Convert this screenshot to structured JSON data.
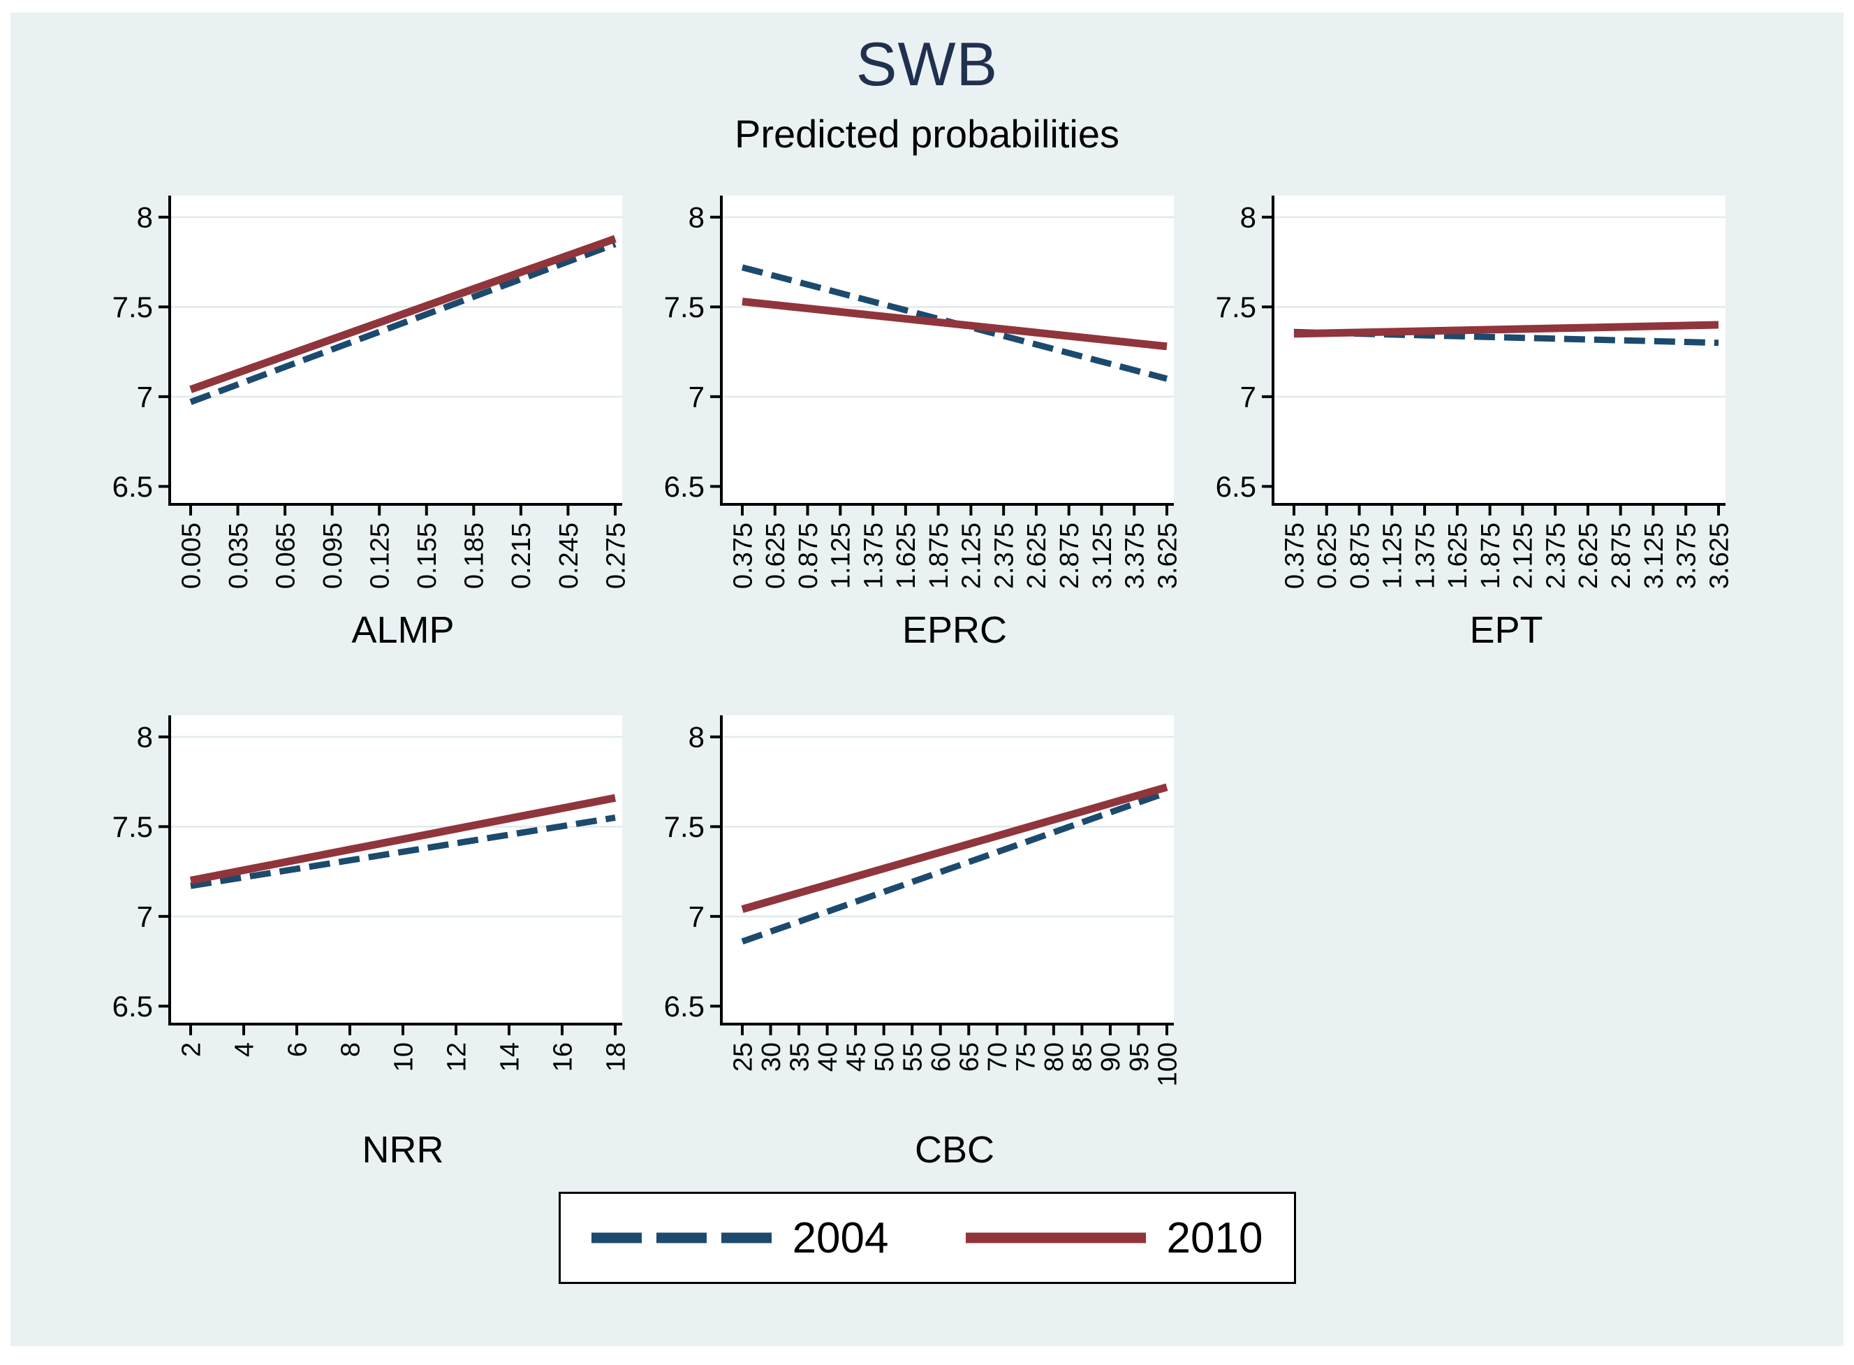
{
  "page": {
    "background": "#ffffff",
    "panel_background": "#eaf1f3"
  },
  "header": {
    "title": "SWB",
    "subtitle": "Predicted probabilities"
  },
  "colors": {
    "title_navy": "#20304f",
    "series_2004_navy": "#1c4a6e",
    "series_2010_maroon": "#90353b",
    "gridline": "#e0eaec",
    "axis": "#000000",
    "plot_background": "#ffffff"
  },
  "legend": {
    "items": [
      {
        "label": "2004",
        "style": "dashed",
        "color": "#1c4a6e"
      },
      {
        "label": "2010",
        "style": "solid",
        "color": "#90353b"
      }
    ]
  },
  "chart_data": [
    {
      "type": "line",
      "xlabel": "ALMP",
      "x_ticks": [
        0.005,
        0.035,
        0.065,
        0.095,
        0.125,
        0.155,
        0.185,
        0.215,
        0.245,
        0.275
      ],
      "x_tick_labels": [
        "0.005",
        "0.035",
        "0.065",
        "0.095",
        "0.125",
        "0.155",
        "0.185",
        "0.215",
        "0.245",
        "0.275"
      ],
      "ylim": [
        6.4,
        8.12
      ],
      "y_ticks": [
        6.5,
        7,
        7.5,
        8
      ],
      "y_tick_labels": [
        "6.5",
        "7",
        "7.5",
        "8"
      ],
      "grid_y": [
        7,
        7.5,
        8
      ],
      "series": [
        {
          "name": "2004",
          "style": "dashed",
          "color": "#1c4a6e",
          "x": [
            0.005,
            0.275
          ],
          "y": [
            6.97,
            7.85
          ]
        },
        {
          "name": "2010",
          "style": "solid",
          "color": "#90353b",
          "x": [
            0.005,
            0.275
          ],
          "y": [
            7.04,
            7.88
          ]
        }
      ]
    },
    {
      "type": "line",
      "xlabel": "EPRC",
      "x_ticks": [
        0.375,
        0.625,
        0.875,
        1.125,
        1.375,
        1.625,
        1.875,
        2.125,
        2.375,
        2.625,
        2.875,
        3.125,
        3.375,
        3.625
      ],
      "x_tick_labels": [
        "0.375",
        "0.625",
        "0.875",
        "1.125",
        "1.375",
        "1.625",
        "1.875",
        "2.125",
        "2.375",
        "2.625",
        "2.875",
        "3.125",
        "3.375",
        "3.625"
      ],
      "ylim": [
        6.4,
        8.12
      ],
      "y_ticks": [
        6.5,
        7,
        7.5,
        8
      ],
      "y_tick_labels": [
        "6.5",
        "7",
        "7.5",
        "8"
      ],
      "grid_y": [
        7,
        7.5,
        8
      ],
      "series": [
        {
          "name": "2004",
          "style": "dashed",
          "color": "#1c4a6e",
          "x": [
            0.375,
            3.625
          ],
          "y": [
            7.72,
            7.1
          ]
        },
        {
          "name": "2010",
          "style": "solid",
          "color": "#90353b",
          "x": [
            0.375,
            3.625
          ],
          "y": [
            7.53,
            7.28
          ]
        }
      ]
    },
    {
      "type": "line",
      "xlabel": "EPT",
      "x_ticks": [
        0.375,
        0.625,
        0.875,
        1.125,
        1.375,
        1.625,
        1.875,
        2.125,
        2.375,
        2.625,
        2.875,
        3.125,
        3.375,
        3.625
      ],
      "x_tick_labels": [
        "0.375",
        "0.625",
        "0.875",
        "1.125",
        "1.375",
        "1.625",
        "1.875",
        "2.125",
        "2.375",
        "2.625",
        "2.875",
        "3.125",
        "3.375",
        "3.625"
      ],
      "ylim": [
        6.4,
        8.12
      ],
      "y_ticks": [
        6.5,
        7,
        7.5,
        8
      ],
      "y_tick_labels": [
        "6.5",
        "7",
        "7.5",
        "8"
      ],
      "grid_y": [
        7,
        7.5,
        8
      ],
      "series": [
        {
          "name": "2004",
          "style": "dashed",
          "color": "#1c4a6e",
          "x": [
            0.375,
            3.625
          ],
          "y": [
            7.36,
            7.3
          ]
        },
        {
          "name": "2010",
          "style": "solid",
          "color": "#90353b",
          "x": [
            0.375,
            3.625
          ],
          "y": [
            7.35,
            7.4
          ]
        }
      ]
    },
    {
      "type": "line",
      "xlabel": "NRR",
      "x_ticks": [
        2,
        4,
        6,
        8,
        10,
        12,
        14,
        16,
        18
      ],
      "x_tick_labels": [
        "2",
        "4",
        "6",
        "8",
        "10",
        "12",
        "14",
        "16",
        "18"
      ],
      "ylim": [
        6.4,
        8.12
      ],
      "y_ticks": [
        6.5,
        7,
        7.5,
        8
      ],
      "y_tick_labels": [
        "6.5",
        "7",
        "7.5",
        "8"
      ],
      "grid_y": [
        7,
        7.5,
        8
      ],
      "series": [
        {
          "name": "2004",
          "style": "dashed",
          "color": "#1c4a6e",
          "x": [
            2,
            18
          ],
          "y": [
            7.17,
            7.55
          ]
        },
        {
          "name": "2010",
          "style": "solid",
          "color": "#90353b",
          "x": [
            2,
            18
          ],
          "y": [
            7.2,
            7.66
          ]
        }
      ]
    },
    {
      "type": "line",
      "xlabel": "CBC",
      "x_ticks": [
        25,
        30,
        35,
        40,
        45,
        50,
        55,
        60,
        65,
        70,
        75,
        80,
        85,
        90,
        95,
        100
      ],
      "x_tick_labels": [
        "25",
        "30",
        "35",
        "40",
        "45",
        "50",
        "55",
        "60",
        "65",
        "70",
        "75",
        "80",
        "85",
        "90",
        "95",
        "100"
      ],
      "ylim": [
        6.4,
        8.12
      ],
      "y_ticks": [
        6.5,
        7,
        7.5,
        8
      ],
      "y_tick_labels": [
        "6.5",
        "7",
        "7.5",
        "8"
      ],
      "grid_y": [
        7,
        7.5,
        8
      ],
      "series": [
        {
          "name": "2004",
          "style": "dashed",
          "color": "#1c4a6e",
          "x": [
            25,
            100
          ],
          "y": [
            6.86,
            7.69
          ]
        },
        {
          "name": "2010",
          "style": "solid",
          "color": "#90353b",
          "x": [
            25,
            100
          ],
          "y": [
            7.04,
            7.72
          ]
        }
      ]
    }
  ]
}
